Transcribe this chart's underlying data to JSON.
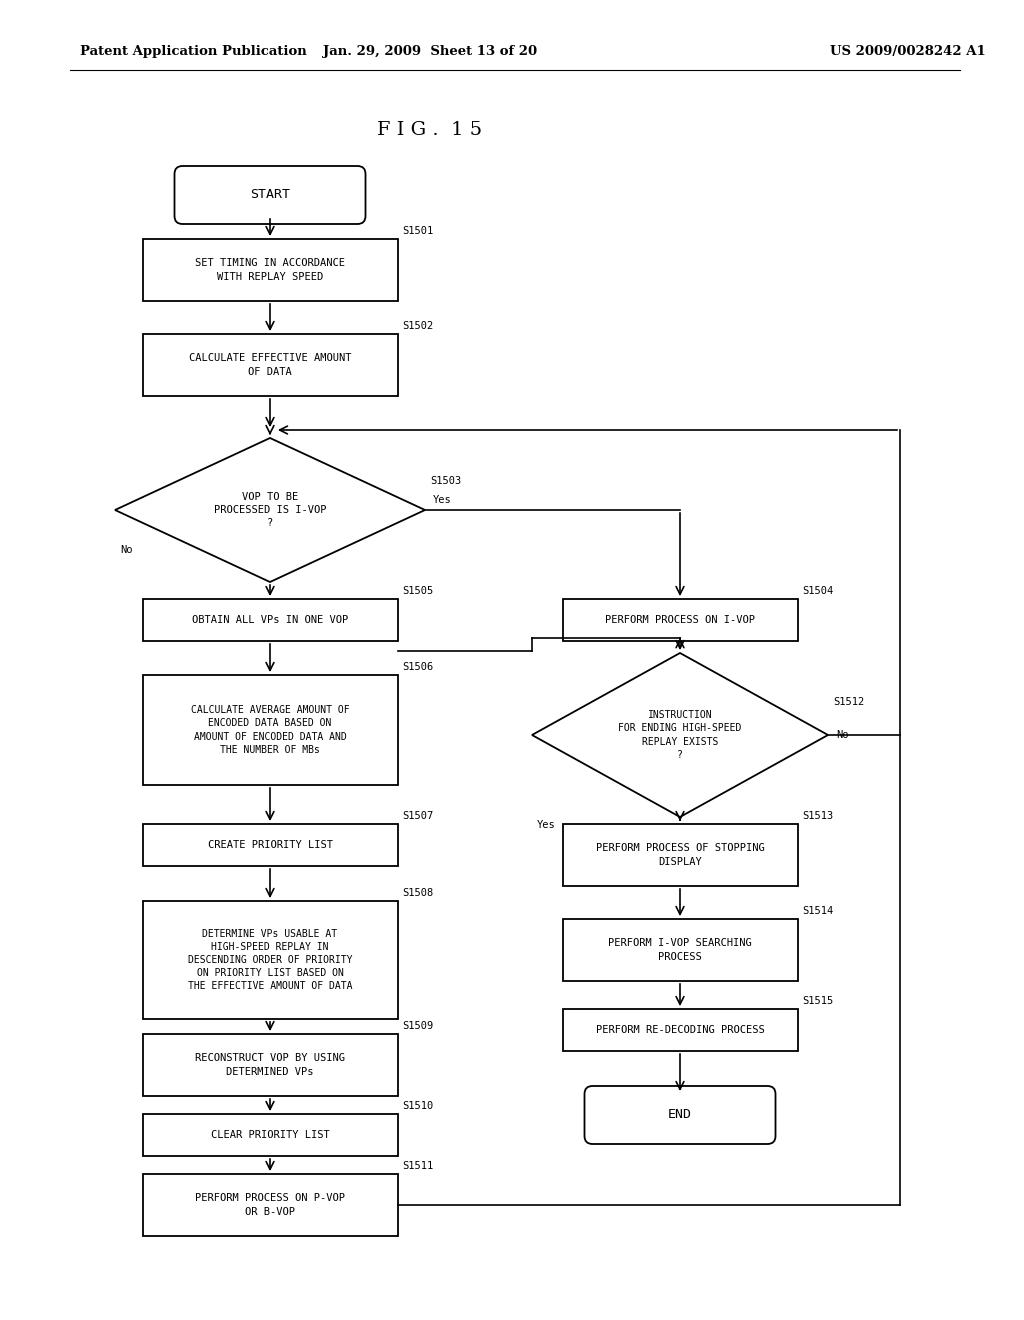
{
  "header_left": "Patent Application Publication",
  "header_mid": "Jan. 29, 2009  Sheet 13 of 20",
  "header_right": "US 2009/0028242 A1",
  "title": "F I G .  1 5",
  "bg": "#ffffff"
}
